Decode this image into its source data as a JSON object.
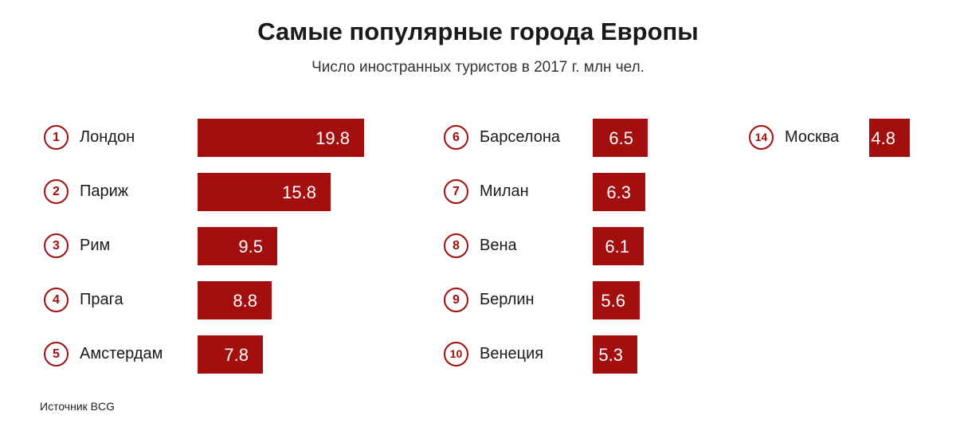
{
  "chart_data": {
    "type": "bar",
    "title": "Самые популярные города Европы",
    "subtitle": "Число иностранных туристов в 2017 г.  млн чел.",
    "source": "Источник BCG",
    "xlabel": "",
    "ylabel": "",
    "unit": "млн чел.",
    "columns": [
      {
        "items": [
          {
            "rank": "1",
            "city": "Лондон",
            "value": 19.8,
            "label": "19.8"
          },
          {
            "rank": "2",
            "city": "Париж",
            "value": 15.8,
            "label": "15.8"
          },
          {
            "rank": "3",
            "city": "Рим",
            "value": 9.5,
            "label": "9.5"
          },
          {
            "rank": "4",
            "city": "Прага",
            "value": 8.8,
            "label": "8.8"
          },
          {
            "rank": "5",
            "city": "Амстердам",
            "value": 7.8,
            "label": "7.8"
          }
        ]
      },
      {
        "items": [
          {
            "rank": "6",
            "city": "Барселона",
            "value": 6.5,
            "label": "6.5"
          },
          {
            "rank": "7",
            "city": "Милан",
            "value": 6.3,
            "label": "6.3"
          },
          {
            "rank": "8",
            "city": "Вена",
            "value": 6.1,
            "label": "6.1"
          },
          {
            "rank": "9",
            "city": "Берлин",
            "value": 5.6,
            "label": "5.6"
          },
          {
            "rank": "10",
            "city": "Венеция",
            "value": 5.3,
            "label": "5.3"
          }
        ]
      },
      {
        "items": [
          {
            "rank": "14",
            "city": "Москва",
            "value": 4.8,
            "label": "4.8"
          }
        ]
      }
    ],
    "bar_color": "#a30e0e"
  }
}
